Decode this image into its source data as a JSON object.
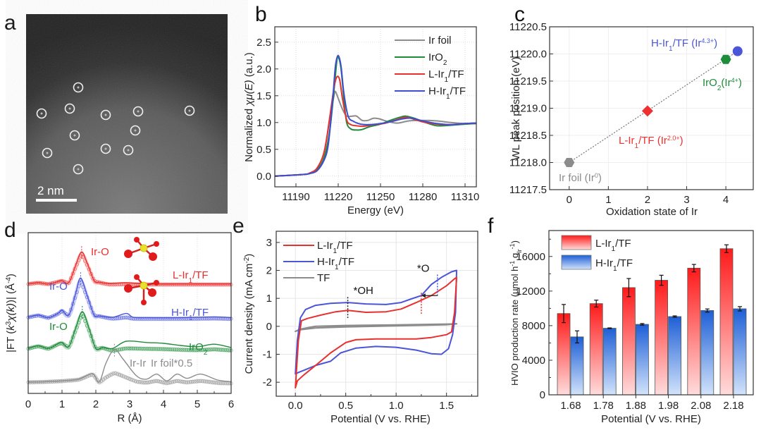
{
  "figure": {
    "panel_letters": [
      "a",
      "b",
      "c",
      "d",
      "e",
      "f"
    ]
  },
  "chart_data": [
    {
      "id": "a",
      "type": "image",
      "description": "HAADF-STEM micrograph with circled single Ir atoms",
      "scale_bar_label": "2 nm",
      "circled_atoms_count": 12
    },
    {
      "id": "b",
      "type": "line",
      "title": "",
      "xlabel": "Energy (eV)",
      "ylabel": "Normalized χμ(E) (a.u.)",
      "xlim": [
        11175,
        11318
      ],
      "ylim": [
        -0.2,
        2.8
      ],
      "xticks": [
        11190,
        11220,
        11250,
        11280,
        11310
      ],
      "yticks": [
        "0.0",
        "0.5",
        "1.0",
        "1.5",
        "2.0",
        "2.5"
      ],
      "grid": true,
      "legend_position": "top-right",
      "series": [
        {
          "name": "Ir foil",
          "color": "#8c8c8c",
          "x": [
            11175,
            11195,
            11200,
            11205,
            11210,
            11214,
            11217,
            11218,
            11220,
            11223,
            11226,
            11230,
            11233,
            11237,
            11241,
            11245,
            11249,
            11255,
            11262,
            11270,
            11280,
            11290,
            11300,
            11310,
            11318
          ],
          "y": [
            0.0,
            0.03,
            0.06,
            0.15,
            0.45,
            1.05,
            1.5,
            1.58,
            1.45,
            1.25,
            1.12,
            1.12,
            1.12,
            1.04,
            1.04,
            1.08,
            1.07,
            1.02,
            0.99,
            1.03,
            1.04,
            1.03,
            1.0,
            0.98,
            0.98
          ]
        },
        {
          "name": "IrO2",
          "color": "#1e8c3a",
          "x": [
            11175,
            11195,
            11200,
            11205,
            11210,
            11214,
            11217,
            11219,
            11220,
            11222,
            11224,
            11226,
            11229,
            11233,
            11237,
            11242,
            11250,
            11258,
            11264,
            11268,
            11274,
            11282,
            11290,
            11300,
            11310,
            11318
          ],
          "y": [
            0.0,
            0.03,
            0.05,
            0.12,
            0.35,
            0.85,
            1.6,
            2.15,
            2.23,
            2.0,
            1.45,
            1.0,
            0.88,
            0.86,
            0.87,
            0.92,
            0.97,
            1.05,
            1.1,
            1.12,
            1.08,
            1.0,
            0.94,
            0.95,
            0.97,
            0.98
          ]
        },
        {
          "name": "L-Ir1/TF",
          "color": "#e8302e",
          "x": [
            11175,
            11195,
            11200,
            11205,
            11210,
            11214,
            11217,
            11219,
            11221,
            11223,
            11226,
            11229,
            11233,
            11238,
            11245,
            11252,
            11260,
            11268,
            11275,
            11282,
            11290,
            11300,
            11310,
            11318
          ],
          "y": [
            0.0,
            0.03,
            0.06,
            0.15,
            0.45,
            1.1,
            1.65,
            1.85,
            1.8,
            1.45,
            1.05,
            0.96,
            0.94,
            0.93,
            0.96,
            0.98,
            1.04,
            1.1,
            1.05,
            1.0,
            0.97,
            0.96,
            0.98,
            0.99
          ]
        },
        {
          "name": "H-Ir1/TF",
          "color": "#3d4fcf",
          "x": [
            11175,
            11195,
            11200,
            11205,
            11210,
            11213,
            11216,
            11218,
            11220,
            11222,
            11224,
            11227,
            11231,
            11236,
            11242,
            11250,
            11258,
            11266,
            11272,
            11280,
            11290,
            11300,
            11310,
            11318
          ],
          "y": [
            0.0,
            0.03,
            0.05,
            0.1,
            0.3,
            0.6,
            1.4,
            2.05,
            2.25,
            2.05,
            1.55,
            1.12,
            1.02,
            0.97,
            0.96,
            0.98,
            1.02,
            1.07,
            1.08,
            1.03,
            0.98,
            0.96,
            0.98,
            0.99
          ]
        }
      ]
    },
    {
      "id": "c",
      "type": "scatter",
      "xlabel": "Oxidation state of Ir",
      "ylabel": "WL peak position (eV)",
      "xlim": [
        -0.5,
        4.7
      ],
      "ylim": [
        11217.5,
        11220.5
      ],
      "xticks": [
        "0",
        "1",
        "2",
        "3",
        "4"
      ],
      "yticks": [
        "11217.5",
        "11218.0",
        "11218.5",
        "11219.0",
        "11219.5",
        "11220.0",
        "11220.5"
      ],
      "grid": true,
      "fit_line": {
        "style": "dotted",
        "color": "#777777",
        "from": [
          0,
          11218.0
        ],
        "to": [
          4.3,
          11220.05
        ]
      },
      "points": [
        {
          "label": "Ir foil (Ir",
          "sup": "0",
          "suffix": ")",
          "x": 0,
          "y": 11218.0,
          "marker": "hexagon",
          "color": "#8c8c8c"
        },
        {
          "label": "L-Ir",
          "sub": "1",
          "label2": "/TF (Ir",
          "sup": "2.0+",
          "suffix": ")",
          "x": 2.0,
          "y": 11218.95,
          "marker": "diamond",
          "color": "#f03030"
        },
        {
          "label": "IrO",
          "sub": "2",
          "label2": "(Ir",
          "sup": "4+",
          "suffix": ")",
          "x": 4.0,
          "y": 11219.9,
          "marker": "hexagon",
          "color": "#1e8c3a"
        },
        {
          "label": "H-Ir",
          "sub": "1",
          "label2": "/TF (Ir",
          "sup": "4.3+",
          "suffix": ")",
          "x": 4.3,
          "y": 11220.05,
          "marker": "circle",
          "color": "#4a55d8"
        }
      ]
    },
    {
      "id": "d",
      "type": "line",
      "xlabel": "R (Å)",
      "ylabel": "|FT (k³χ(k))| (Å⁻⁴)",
      "xlim": [
        0,
        6
      ],
      "xticks": [
        "0",
        "1",
        "2",
        "3",
        "4",
        "5",
        "6"
      ],
      "grid": true,
      "series": [
        {
          "name": "L-Ir1/TF",
          "color": "#e8302e",
          "offset": 3,
          "peak_label": "Ir-O",
          "peak_x": 1.58,
          "x": [
            0,
            0.3,
            0.6,
            0.9,
            1.0,
            1.2,
            1.4,
            1.58,
            1.75,
            1.95,
            2.1,
            2.4,
            2.9,
            3.5,
            4.5,
            5.5,
            6
          ],
          "y": [
            0.02,
            0.05,
            0.02,
            0.08,
            0.1,
            0.05,
            0.45,
            0.78,
            0.5,
            0.1,
            0.06,
            0.03,
            0.05,
            0.02,
            0.02,
            0.02,
            0.02
          ]
        },
        {
          "name": "H-Ir1/TF",
          "color": "#4a55d8",
          "offset": 2,
          "peak_label": "Ir-O",
          "peak_x": 1.55,
          "x": [
            0,
            0.3,
            0.6,
            0.9,
            1.0,
            1.2,
            1.4,
            1.55,
            1.75,
            1.95,
            2.1,
            2.5,
            2.9,
            3.1,
            3.5,
            4.5,
            5.5,
            6
          ],
          "y": [
            0.05,
            0.1,
            0.04,
            0.15,
            0.22,
            0.1,
            0.6,
            0.98,
            0.55,
            0.1,
            0.08,
            0.05,
            0.14,
            0.05,
            0.04,
            0.04,
            0.06,
            0.04
          ]
        },
        {
          "name": "IrO2",
          "color": "#1e8c3a",
          "offset": 1,
          "peak_label": "Ir-O",
          "peak_x": 1.6,
          "x": [
            0,
            0.3,
            0.6,
            0.9,
            1.0,
            1.2,
            1.4,
            1.6,
            1.8,
            2.0,
            2.2,
            2.5,
            2.9,
            3.5,
            4.0,
            4.5,
            5.0,
            5.5,
            6
          ],
          "y": [
            0.08,
            0.14,
            0.08,
            0.2,
            0.22,
            0.12,
            0.55,
            0.95,
            0.55,
            0.08,
            0.1,
            0.08,
            0.25,
            0.22,
            0.2,
            0.15,
            0.12,
            0.18,
            0.1
          ]
        },
        {
          "name": "Ir foil*0.5",
          "color": "#8c8c8c",
          "offset": 0,
          "peak_label": "Ir-Ir",
          "peak_x": 2.55,
          "x": [
            0,
            0.5,
            1.0,
            1.5,
            1.9,
            2.1,
            2.3,
            2.55,
            2.8,
            3.2,
            3.5,
            3.8,
            4.1,
            4.4,
            4.7,
            5.1,
            5.6,
            6
          ],
          "y": [
            0.05,
            0.06,
            0.08,
            0.12,
            0.25,
            0.05,
            0.5,
            0.82,
            0.6,
            0.2,
            0.12,
            0.24,
            0.08,
            0.24,
            0.14,
            0.24,
            0.1,
            0.06
          ]
        }
      ]
    },
    {
      "id": "e",
      "type": "line",
      "xlabel": "Potential (V vs. RHE)",
      "ylabel": "Current density (mA cm⁻²)",
      "xlim": [
        -0.19,
        1.81
      ],
      "ylim": [
        -2.5,
        3.4
      ],
      "xticks": [
        "0.0",
        "0.5",
        "1.0",
        "1.5"
      ],
      "yticks": [
        "-2",
        "-1",
        "0",
        "1",
        "2",
        "3"
      ],
      "grid": true,
      "legend_position": "top-left",
      "annotations": [
        {
          "text": "*OH",
          "x": 0.52
        },
        {
          "text": "*O",
          "from_x": 1.41,
          "to_x": 1.25
        }
      ],
      "series": [
        {
          "name": "L-Ir1/TF",
          "color": "#e8302e",
          "x": [
            0.0,
            0.03,
            0.06,
            0.12,
            0.25,
            0.4,
            0.52,
            0.7,
            0.9,
            1.05,
            1.2,
            1.35,
            1.5,
            1.58,
            1.6,
            1.58,
            1.55,
            1.5,
            1.35,
            1.2,
            1.0,
            0.8,
            0.6,
            0.5,
            0.35,
            0.2,
            0.08,
            0.02,
            0.0
          ],
          "y": [
            -2.2,
            -0.5,
            0.2,
            0.28,
            0.4,
            0.52,
            0.57,
            0.5,
            0.52,
            0.62,
            0.85,
            1.1,
            1.45,
            1.7,
            1.75,
            0.5,
            -0.2,
            -0.3,
            -0.4,
            -0.45,
            -0.45,
            -0.45,
            -0.48,
            -0.58,
            -0.95,
            -1.4,
            -1.75,
            -1.95,
            -2.2
          ]
        },
        {
          "name": "H-Ir1/TF",
          "color": "#4a55d8",
          "x": [
            0.0,
            0.02,
            0.05,
            0.1,
            0.2,
            0.35,
            0.52,
            0.7,
            0.9,
            1.05,
            1.15,
            1.25,
            1.35,
            1.45,
            1.55,
            1.6,
            1.59,
            1.56,
            1.52,
            1.45,
            1.35,
            1.2,
            1.0,
            0.8,
            0.6,
            0.45,
            0.35,
            0.2,
            0.1,
            0.03,
            0.0
          ],
          "y": [
            -1.7,
            -0.5,
            0.3,
            0.6,
            0.75,
            0.82,
            0.85,
            0.8,
            0.78,
            0.85,
            0.98,
            1.1,
            1.5,
            1.75,
            1.95,
            2.0,
            0.5,
            -0.3,
            -0.8,
            -1.0,
            -0.98,
            -0.85,
            -0.75,
            -0.72,
            -0.78,
            -0.95,
            -1.25,
            -1.4,
            -1.55,
            -1.65,
            -1.7
          ]
        },
        {
          "name": "TF",
          "color": "#8c8c8c",
          "x": [
            0.0,
            0.05,
            0.2,
            0.5,
            1.0,
            1.5,
            1.6,
            1.5,
            1.0,
            0.5,
            0.2,
            0.05,
            0.0
          ],
          "y": [
            -0.18,
            -0.1,
            0.0,
            0.03,
            0.05,
            0.08,
            0.09,
            0.06,
            0.02,
            -0.02,
            -0.06,
            -0.12,
            -0.18
          ]
        }
      ]
    },
    {
      "id": "f",
      "type": "bar",
      "xlabel": "Potential (V vs. RHE)",
      "ylabel": "HVIO production rate (μmol h⁻¹ g_Ir⁻¹)",
      "ylim": [
        0,
        19000
      ],
      "yticks": [
        "0",
        "4000",
        "8000",
        "12000",
        "16000"
      ],
      "categories": [
        "1.68",
        "1.78",
        "1.88",
        "1.98",
        "2.08",
        "2.18"
      ],
      "legend_position": "top-left",
      "series": [
        {
          "name": "L-Ir1/TF",
          "color_top": "#ff1a1a",
          "color_bottom": "#ffdcdc",
          "values": [
            9400,
            10550,
            12400,
            13250,
            14650,
            16900
          ],
          "errors": [
            1050,
            400,
            1050,
            580,
            430,
            450
          ]
        },
        {
          "name": "H-Ir1/TF",
          "color_top": "#1e5fd6",
          "color_bottom": "#d2e3fb",
          "values": [
            6700,
            7700,
            8150,
            9050,
            9750,
            9950
          ],
          "errors": [
            700,
            40,
            90,
            80,
            180,
            250
          ]
        }
      ]
    }
  ]
}
